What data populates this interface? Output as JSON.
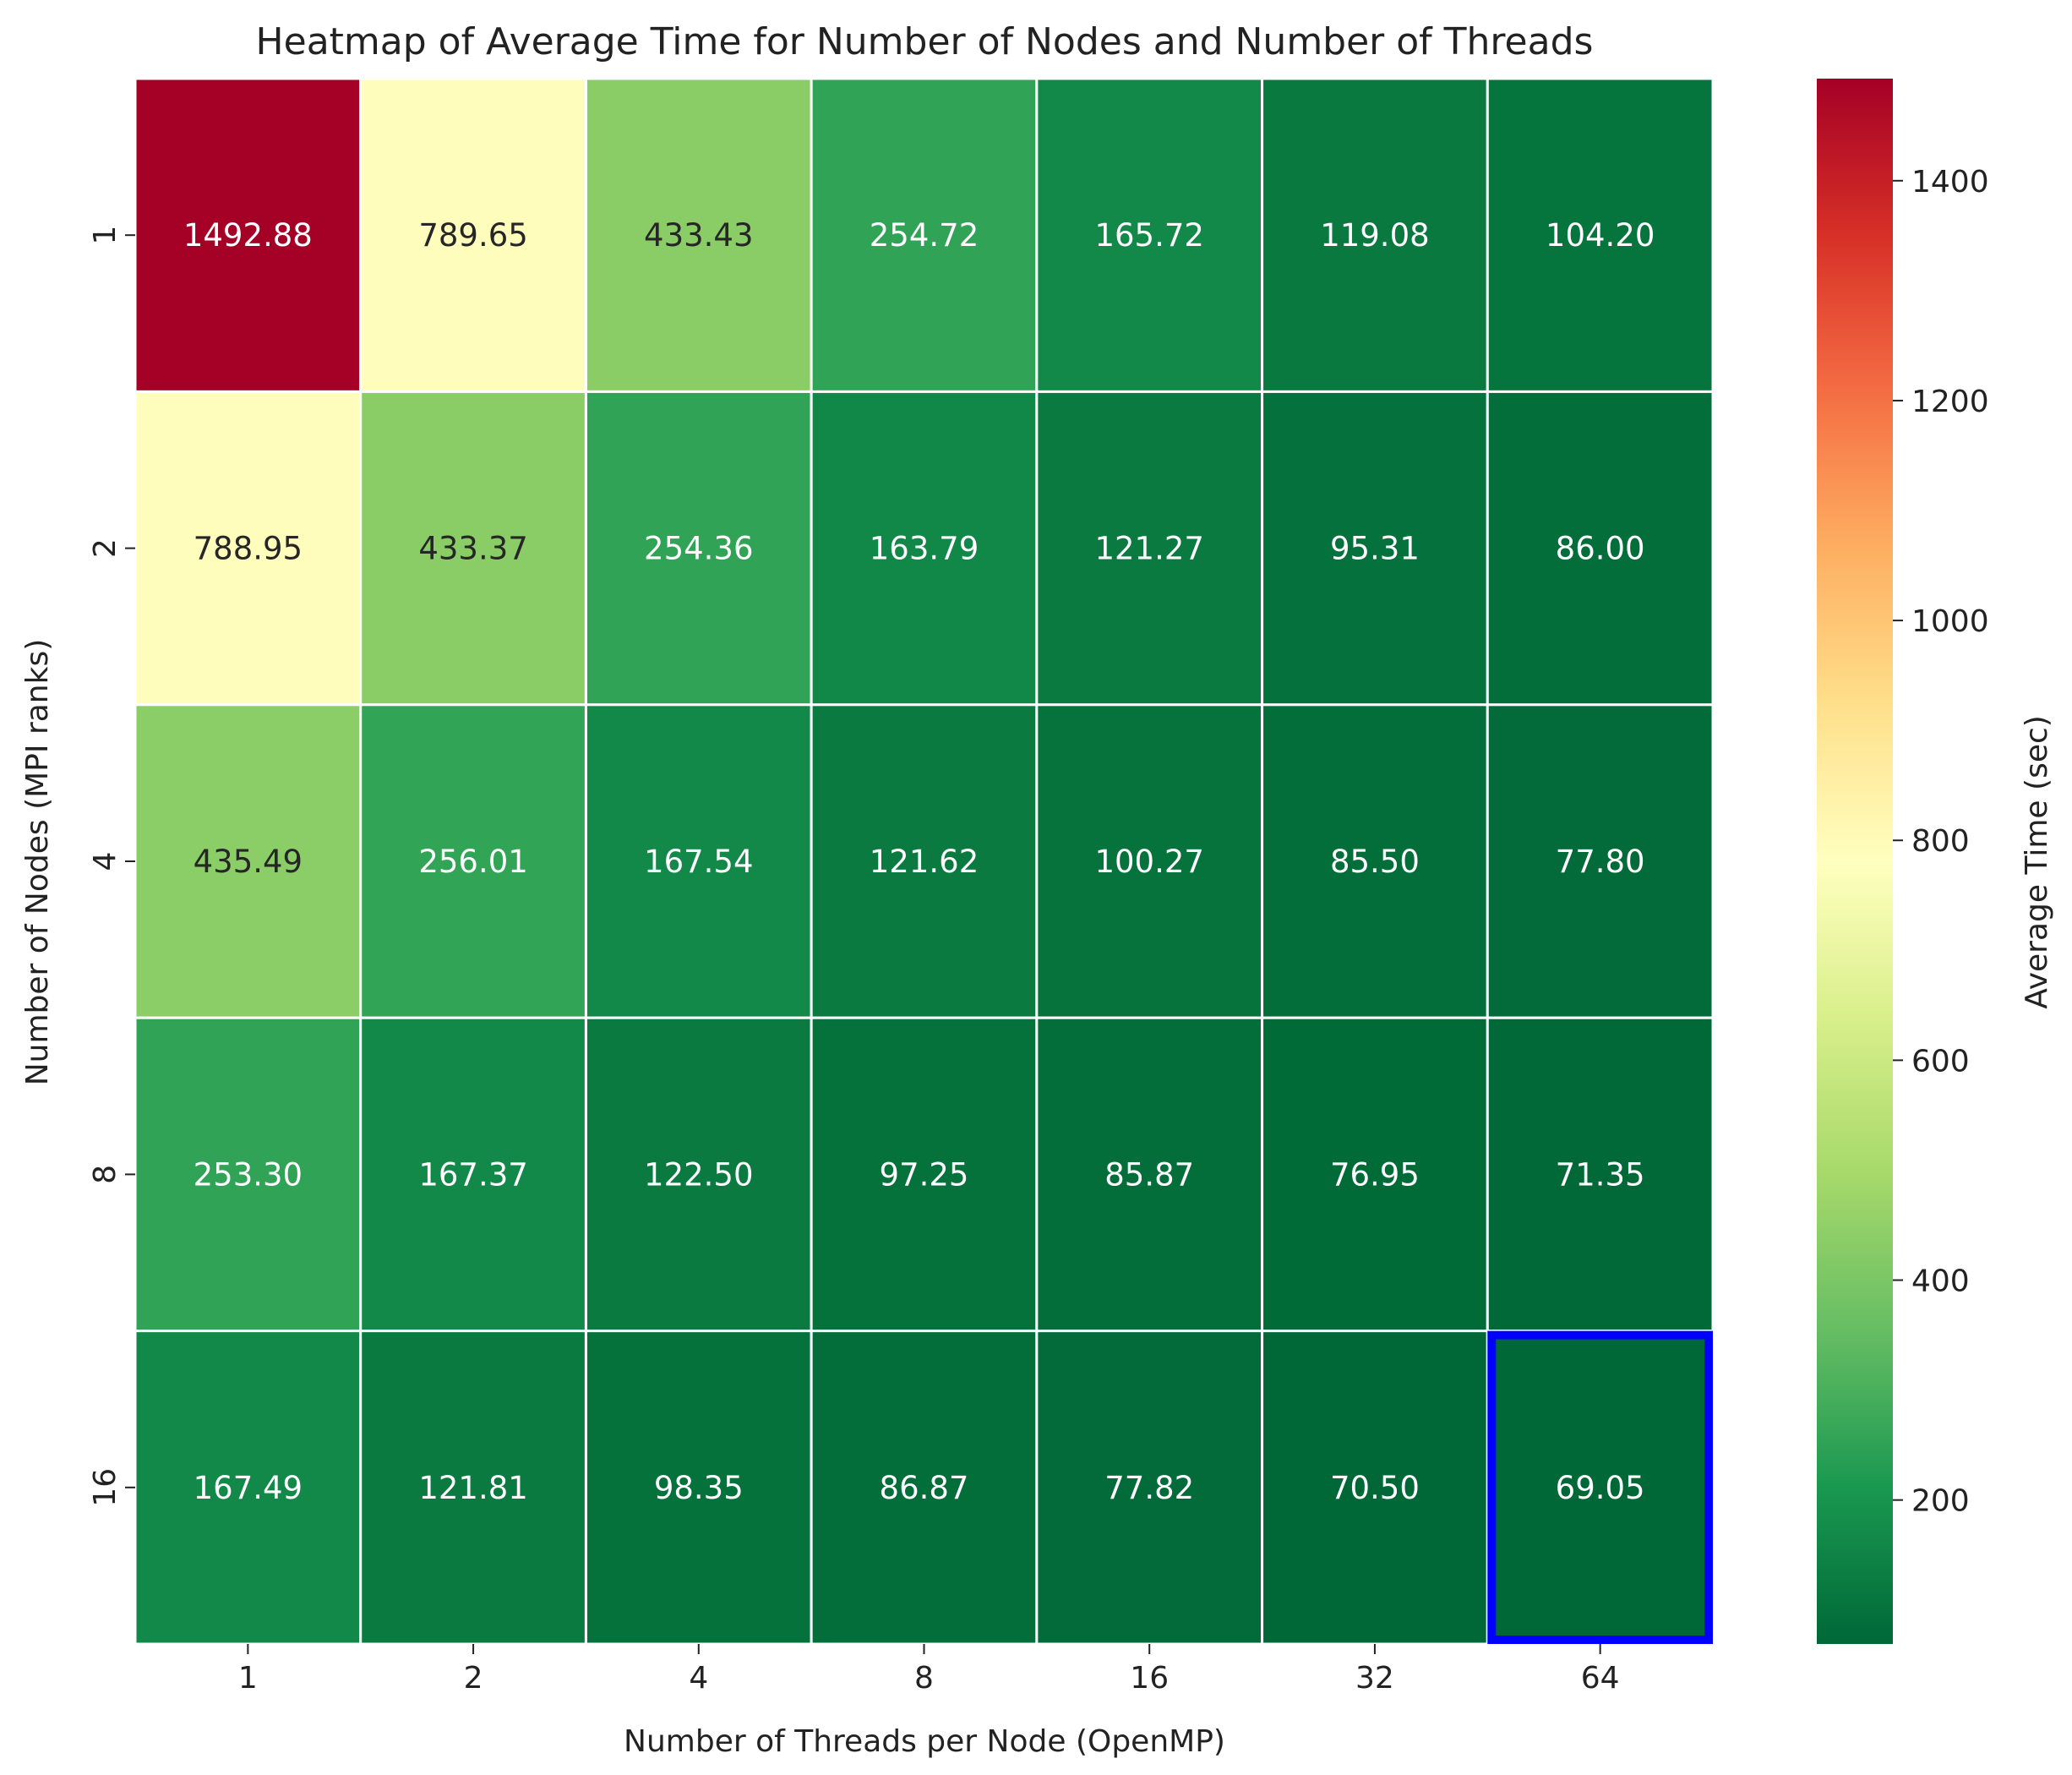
{
  "chart_data": {
    "type": "heatmap",
    "title": "Heatmap of Average Time for Number of Nodes and Number of Threads",
    "xlabel": "Number of Threads per Node (OpenMP)",
    "ylabel": "Number of Nodes (MPI ranks)",
    "x_categories": [
      "1",
      "2",
      "4",
      "8",
      "16",
      "32",
      "64"
    ],
    "y_categories": [
      "1",
      "2",
      "4",
      "8",
      "16"
    ],
    "values": [
      [
        1492.88,
        789.65,
        433.43,
        254.72,
        165.72,
        119.08,
        104.2
      ],
      [
        788.95,
        433.37,
        254.36,
        163.79,
        121.27,
        95.31,
        86.0
      ],
      [
        435.49,
        256.01,
        167.54,
        121.62,
        100.27,
        85.5,
        77.8
      ],
      [
        253.3,
        167.37,
        122.5,
        97.25,
        85.87,
        76.95,
        71.35
      ],
      [
        167.49,
        121.81,
        98.35,
        86.87,
        77.82,
        70.5,
        69.05
      ]
    ],
    "value_format": "2 decimals",
    "colormap": "RdYlGn_r",
    "vmin": 69.05,
    "vmax": 1492.88,
    "colorbar": {
      "label": "Average Time (sec)",
      "ticks": [
        200,
        400,
        600,
        800,
        1000,
        1200,
        1400
      ]
    },
    "highlight": {
      "row_label": "16",
      "col_label": "64",
      "color": "#0000ff"
    }
  }
}
